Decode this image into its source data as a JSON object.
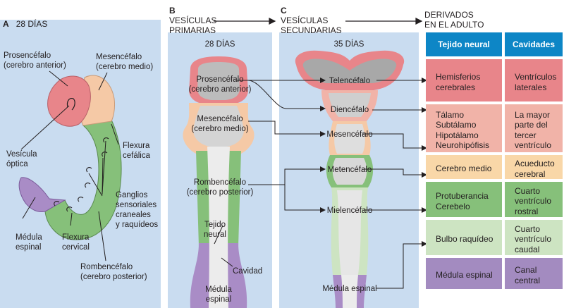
{
  "panel_a": {
    "letter": "A",
    "age": "28 DÍAS",
    "labels": {
      "prosencephalon": "Prosencéfalo\n(cerebro anterior)",
      "mesencephalon": "Mesencéfalo\n(cerebro medio)",
      "cephalic_flexure": "Flexura\ncefálica",
      "optic_vesicle": "Vesícula\nóptica",
      "ganglia": "Ganglios\nsensoriales\ncraneales\ny raquídeos",
      "spinal_cord": "Médula\nespinal",
      "cervical_flexure": "Flexura\ncervical",
      "rhombencephalon": "Rombencéfalo\n(cerebro posterior)"
    }
  },
  "panel_b": {
    "letter": "B",
    "title": "VESÍCULAS\nPRIMARIAS",
    "age": "28 DÍAS",
    "labels": {
      "prosencephalon": "Prosencéfalo\n(cerebro anterior)",
      "mesencephalon": "Mesencéfalo\n(cerebro medio)",
      "rhombencephalon": "Rombencéfalo\n(cerebro posterior)",
      "neural_tissue": "Tejido\nneural",
      "cavity": "Cavidad",
      "spinal_cord": "Médula\nespinal"
    }
  },
  "panel_c": {
    "letter": "C",
    "title": "VESÍCULAS\nSECUNDARIAS",
    "age": "35 DÍAS",
    "labels": {
      "telencephalon": "Telencéfalo",
      "diencephalon": "Diencéfalo",
      "mesencephalon": "Mesencéfalo",
      "metencephalon": "Metencéfalo",
      "myelencephalon": "Mielencéfalo",
      "spinal_cord": "Médula espinal"
    }
  },
  "derivatives": {
    "title": "DERIVADOS\nEN EL ADULTO",
    "headers": {
      "tissue": "Tejido neural",
      "cavities": "Cavidades"
    },
    "rows": [
      {
        "tissue": "Hemisferios\ncerebrales",
        "cavity": "Ventrículos\nlaterales",
        "color": "#e8858a"
      },
      {
        "tissue": "Tálamo\nSubtálamo\nHipotálamo\nNeurohipófisis",
        "cavity": "La mayor\nparte del\ntercer\nventrículo",
        "color": "#f1b3a8"
      },
      {
        "tissue": "Cerebro medio",
        "cavity": "Acueducto\ncerebral",
        "color": "#f9d7a8"
      },
      {
        "tissue": "Protuberancia\nCerebelo",
        "cavity": "Cuarto\nventrículo\nrostral",
        "color": "#86c07a"
      },
      {
        "tissue": "Bulbo raquídeo",
        "cavity": "Cuarto\nventrículo\ncaudal",
        "color": "#cde4c2"
      },
      {
        "tissue": "Médula espinal",
        "cavity": "Canal\ncentral",
        "color": "#a38bc0"
      }
    ],
    "header_color": "#0d86c6"
  }
}
